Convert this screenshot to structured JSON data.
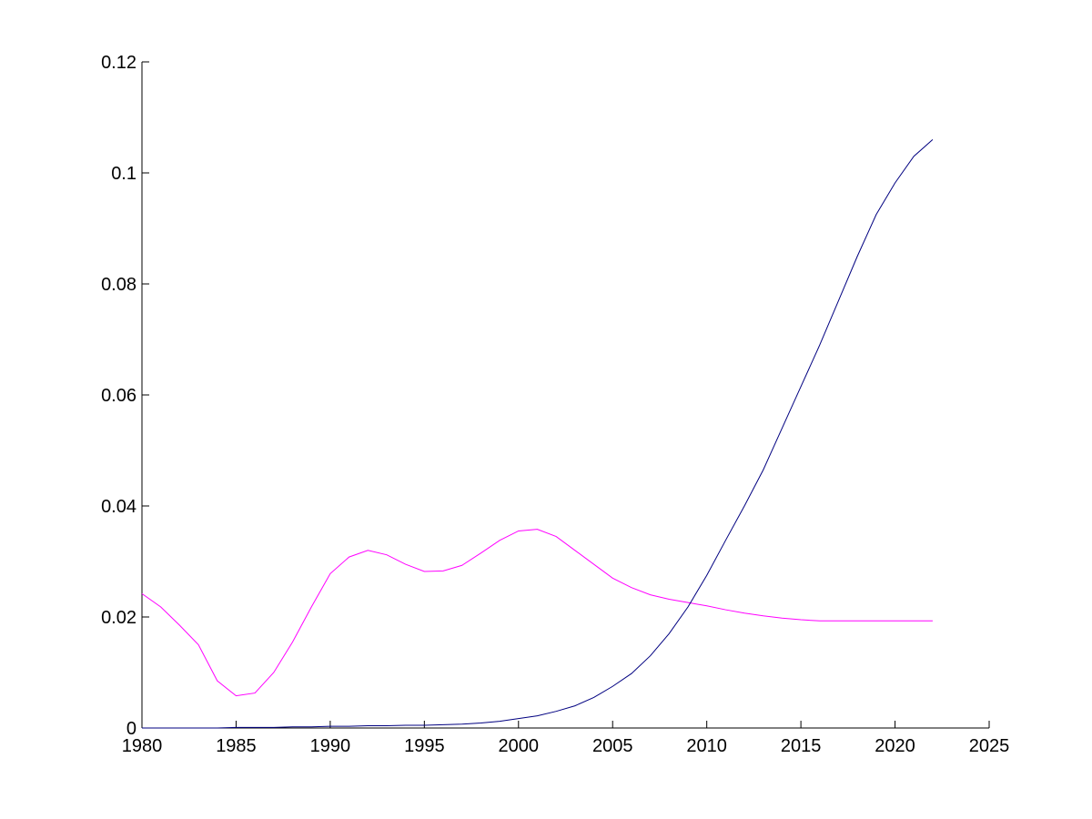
{
  "chart_data": {
    "type": "line",
    "title": "",
    "xlabel": "",
    "ylabel": "",
    "xlim": [
      1980,
      2025
    ],
    "ylim": [
      0,
      0.12
    ],
    "xticks": [
      "1980",
      "1985",
      "1990",
      "1995",
      "2000",
      "2005",
      "2010",
      "2015",
      "2020",
      "2025"
    ],
    "yticks": [
      "0",
      "0.02",
      "0.04",
      "0.06",
      "0.08",
      "0.1",
      "0.12"
    ],
    "grid": false,
    "legend": false,
    "x": [
      1980,
      1981,
      1982,
      1983,
      1984,
      1985,
      1986,
      1987,
      1988,
      1989,
      1990,
      1991,
      1992,
      1993,
      1994,
      1995,
      1996,
      1997,
      1998,
      1999,
      2000,
      2001,
      2002,
      2003,
      2004,
      2005,
      2006,
      2007,
      2008,
      2009,
      2010,
      2011,
      2012,
      2013,
      2014,
      2015,
      2016,
      2017,
      2018,
      2019,
      2020,
      2021,
      2022
    ],
    "series": [
      {
        "color": "#ff00ff",
        "values": [
          0.0242,
          0.0218,
          0.0185,
          0.015,
          0.0085,
          0.0058,
          0.0063,
          0.01,
          0.0155,
          0.0218,
          0.0278,
          0.0308,
          0.032,
          0.0312,
          0.0295,
          0.0282,
          0.0283,
          0.0293,
          0.0315,
          0.0338,
          0.0355,
          0.0358,
          0.0345,
          0.032,
          0.0295,
          0.027,
          0.0253,
          0.024,
          0.0232,
          0.0226,
          0.022,
          0.0213,
          0.0207,
          0.0202,
          0.0198,
          0.0195,
          0.0193,
          0.0193,
          0.0193,
          0.0193,
          0.0193,
          0.0193,
          0.0193
        ]
      },
      {
        "color": "#000080",
        "values": [
          0.0,
          0.0,
          0.0,
          0.0,
          0.0,
          0.0001,
          0.0001,
          0.0001,
          0.0002,
          0.0002,
          0.0003,
          0.0003,
          0.0004,
          0.0004,
          0.0005,
          0.0005,
          0.0006,
          0.0007,
          0.0009,
          0.0012,
          0.0017,
          0.0022,
          0.003,
          0.004,
          0.0055,
          0.0075,
          0.0098,
          0.013,
          0.017,
          0.0218,
          0.0275,
          0.0338,
          0.04,
          0.0465,
          0.054,
          0.0615,
          0.069,
          0.077,
          0.085,
          0.0925,
          0.0982,
          0.103,
          0.106
        ]
      }
    ]
  }
}
